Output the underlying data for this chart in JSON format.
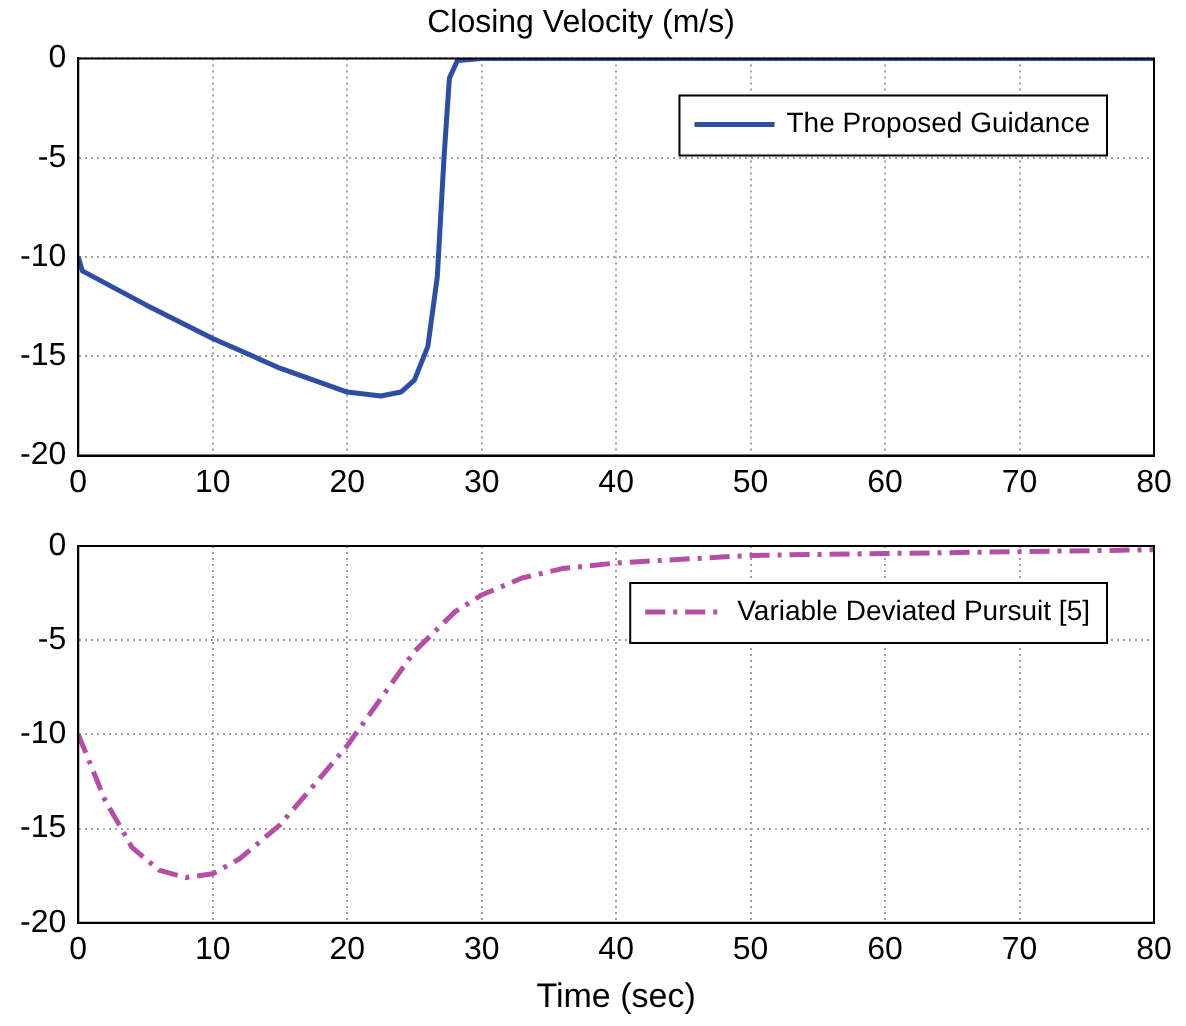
{
  "chart_data": [
    {
      "type": "line",
      "title": "Closing Velocity (m/s)",
      "xlim": [
        0,
        80
      ],
      "xticks": [
        0,
        10,
        20,
        30,
        40,
        50,
        60,
        70,
        80
      ],
      "ylim": [
        -20,
        0
      ],
      "yticks": [
        -20,
        -15,
        -10,
        -5,
        0
      ],
      "grid": true,
      "legend": "top right",
      "marker": "none",
      "line_style": "solid",
      "series": [
        {
          "name": "The Proposed Guidance",
          "color": "#2e4ea6",
          "x": [
            0,
            0.3,
            5,
            10,
            15,
            20,
            22.5,
            24,
            25,
            26,
            26.7,
            27.2,
            27.6,
            28.2,
            30,
            80
          ],
          "values": [
            -10,
            -10.7,
            -12.4,
            -14.1,
            -15.6,
            -16.8,
            -17,
            -16.8,
            -16.2,
            -14.5,
            -11,
            -5,
            -1,
            -0.1,
            0,
            0
          ]
        }
      ]
    },
    {
      "type": "line",
      "xlabel": "Time (sec)",
      "xlim": [
        0,
        80
      ],
      "xticks": [
        0,
        10,
        20,
        30,
        40,
        50,
        60,
        70,
        80
      ],
      "ylim": [
        -20,
        0
      ],
      "yticks": [
        -20,
        -15,
        -10,
        -5,
        0
      ],
      "grid": true,
      "legend": "top right",
      "marker": "none",
      "line_style": "dashed",
      "series": [
        {
          "name": "Variable Deviated Pursuit [5]",
          "color": "#b44ea6",
          "x": [
            0,
            2,
            4,
            6,
            8,
            10,
            12,
            15,
            18,
            20,
            22,
            25,
            28,
            30,
            33,
            36,
            40,
            50,
            60,
            70,
            80
          ],
          "values": [
            -10,
            -13.5,
            -16,
            -17.2,
            -17.6,
            -17.4,
            -16.6,
            -14.8,
            -12.3,
            -10.6,
            -8.6,
            -5.6,
            -3.5,
            -2.6,
            -1.7,
            -1.2,
            -0.9,
            -0.5,
            -0.4,
            -0.3,
            -0.2
          ]
        }
      ]
    }
  ]
}
